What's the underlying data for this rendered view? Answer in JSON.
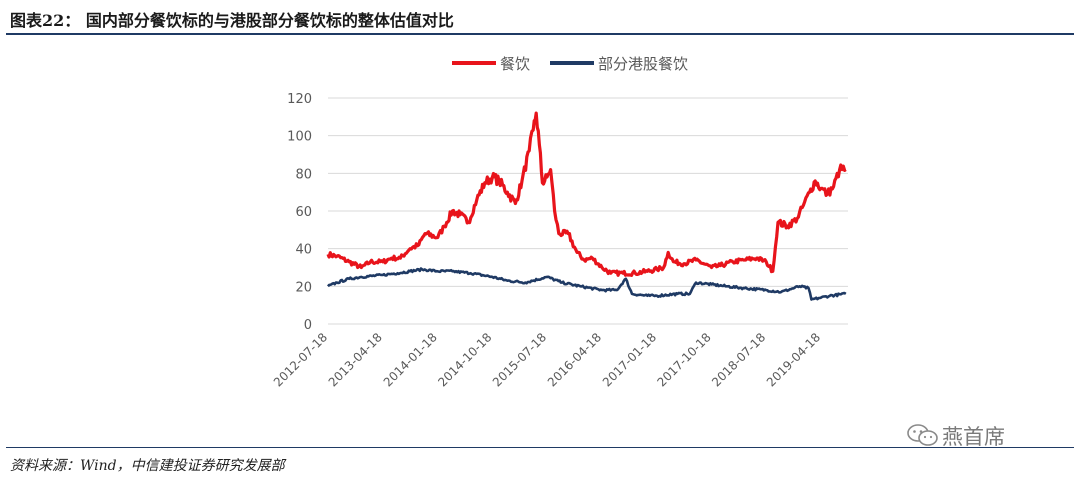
{
  "figure": {
    "title": "图表22：  国内部分餐饮标的与港股部分餐饮标的整体估值对比",
    "source": "资料来源：Wind，中信建投证券研究发展部",
    "watermark": "燕首席"
  },
  "colors": {
    "restaurant": "#e8141b",
    "hk": "#1f3a64",
    "grid": "#d9d9d9",
    "rule": "#1f3a64"
  },
  "chart_data": {
    "type": "line",
    "title": "",
    "xlabel": "",
    "ylabel": "",
    "ylim": [
      0,
      120
    ],
    "yticks": [
      0,
      20,
      40,
      60,
      80,
      100,
      120
    ],
    "xlim": [
      "2012-07-18",
      "2019-08-31"
    ],
    "xticks": [
      "2012-07-18",
      "2013-04-18",
      "2014-01-18",
      "2014-10-18",
      "2015-07-18",
      "2016-04-18",
      "2017-01-18",
      "2017-10-18",
      "2018-07-18",
      "2019-04-18"
    ],
    "grid": true,
    "legend": "top-center",
    "series": [
      {
        "name": "餐饮",
        "color": "#e8141b",
        "points": [
          [
            "2012-07-18",
            37
          ],
          [
            "2012-09-01",
            36
          ],
          [
            "2012-11-01",
            33
          ],
          [
            "2013-01-01",
            30
          ],
          [
            "2013-02-15",
            33
          ],
          [
            "2013-04-18",
            33
          ],
          [
            "2013-06-01",
            35
          ],
          [
            "2013-07-15",
            35
          ],
          [
            "2013-09-01",
            40
          ],
          [
            "2013-10-15",
            42
          ],
          [
            "2013-11-15",
            48
          ],
          [
            "2014-01-18",
            46
          ],
          [
            "2014-02-20",
            52
          ],
          [
            "2014-04-01",
            60
          ],
          [
            "2014-05-10",
            58
          ],
          [
            "2014-06-20",
            54
          ],
          [
            "2014-08-01",
            66
          ],
          [
            "2014-09-10",
            75
          ],
          [
            "2014-10-18",
            78
          ],
          [
            "2014-11-20",
            76
          ],
          [
            "2015-01-01",
            70
          ],
          [
            "2015-02-10",
            64
          ],
          [
            "2015-03-15",
            76
          ],
          [
            "2015-04-20",
            92
          ],
          [
            "2015-05-10",
            103
          ],
          [
            "2015-05-25",
            112
          ],
          [
            "2015-06-10",
            95
          ],
          [
            "2015-06-25",
            75
          ],
          [
            "2015-07-18",
            78
          ],
          [
            "2015-08-05",
            82
          ],
          [
            "2015-08-25",
            60
          ],
          [
            "2015-09-15",
            48
          ],
          [
            "2015-11-01",
            48
          ],
          [
            "2015-12-15",
            38
          ],
          [
            "2016-01-20",
            34
          ],
          [
            "2016-03-01",
            35
          ],
          [
            "2016-04-18",
            30
          ],
          [
            "2016-06-01",
            27
          ],
          [
            "2016-08-01",
            27
          ],
          [
            "2016-10-01",
            27
          ],
          [
            "2016-12-01",
            28
          ],
          [
            "2017-01-18",
            29
          ],
          [
            "2017-02-20",
            30
          ],
          [
            "2017-03-15",
            38
          ],
          [
            "2017-04-10",
            33
          ],
          [
            "2017-06-01",
            32
          ],
          [
            "2017-08-01",
            34
          ],
          [
            "2017-10-18",
            30
          ],
          [
            "2017-12-01",
            31
          ],
          [
            "2018-02-01",
            33
          ],
          [
            "2018-04-01",
            34
          ],
          [
            "2018-06-01",
            35
          ],
          [
            "2018-07-18",
            33
          ],
          [
            "2018-08-20",
            28
          ],
          [
            "2018-09-15",
            54
          ],
          [
            "2018-11-01",
            52
          ],
          [
            "2018-12-20",
            56
          ],
          [
            "2019-01-20",
            63
          ],
          [
            "2019-02-20",
            70
          ],
          [
            "2019-03-20",
            76
          ],
          [
            "2019-04-18",
            72
          ],
          [
            "2019-05-20",
            69
          ],
          [
            "2019-06-20",
            73
          ],
          [
            "2019-07-20",
            82
          ],
          [
            "2019-08-20",
            82
          ]
        ]
      },
      {
        "name": "部分港股餐饮",
        "color": "#1f3a64",
        "points": [
          [
            "2012-07-18",
            20
          ],
          [
            "2012-09-01",
            22
          ],
          [
            "2012-11-01",
            24
          ],
          [
            "2013-01-01",
            25
          ],
          [
            "2013-04-18",
            26
          ],
          [
            "2013-07-01",
            27
          ],
          [
            "2013-09-01",
            28
          ],
          [
            "2013-11-01",
            29
          ],
          [
            "2014-01-18",
            28
          ],
          [
            "2014-04-01",
            28
          ],
          [
            "2014-07-01",
            27
          ],
          [
            "2014-10-18",
            25
          ],
          [
            "2015-01-01",
            23
          ],
          [
            "2015-04-01",
            22
          ],
          [
            "2015-07-18",
            25
          ],
          [
            "2015-10-01",
            22
          ],
          [
            "2016-01-01",
            20
          ],
          [
            "2016-04-18",
            18
          ],
          [
            "2016-07-01",
            18
          ],
          [
            "2016-08-15",
            24
          ],
          [
            "2016-09-15",
            16
          ],
          [
            "2016-12-01",
            15
          ],
          [
            "2017-01-18",
            15
          ],
          [
            "2017-05-01",
            16
          ],
          [
            "2017-07-01",
            16
          ],
          [
            "2017-08-01",
            22
          ],
          [
            "2017-10-18",
            21
          ],
          [
            "2018-01-01",
            20
          ],
          [
            "2018-04-01",
            19
          ],
          [
            "2018-07-18",
            18
          ],
          [
            "2018-10-01",
            17
          ],
          [
            "2019-01-01",
            20
          ],
          [
            "2019-02-15",
            19
          ],
          [
            "2019-03-01",
            13
          ],
          [
            "2019-04-18",
            14
          ],
          [
            "2019-06-01",
            15
          ],
          [
            "2019-08-20",
            16
          ]
        ]
      }
    ]
  }
}
